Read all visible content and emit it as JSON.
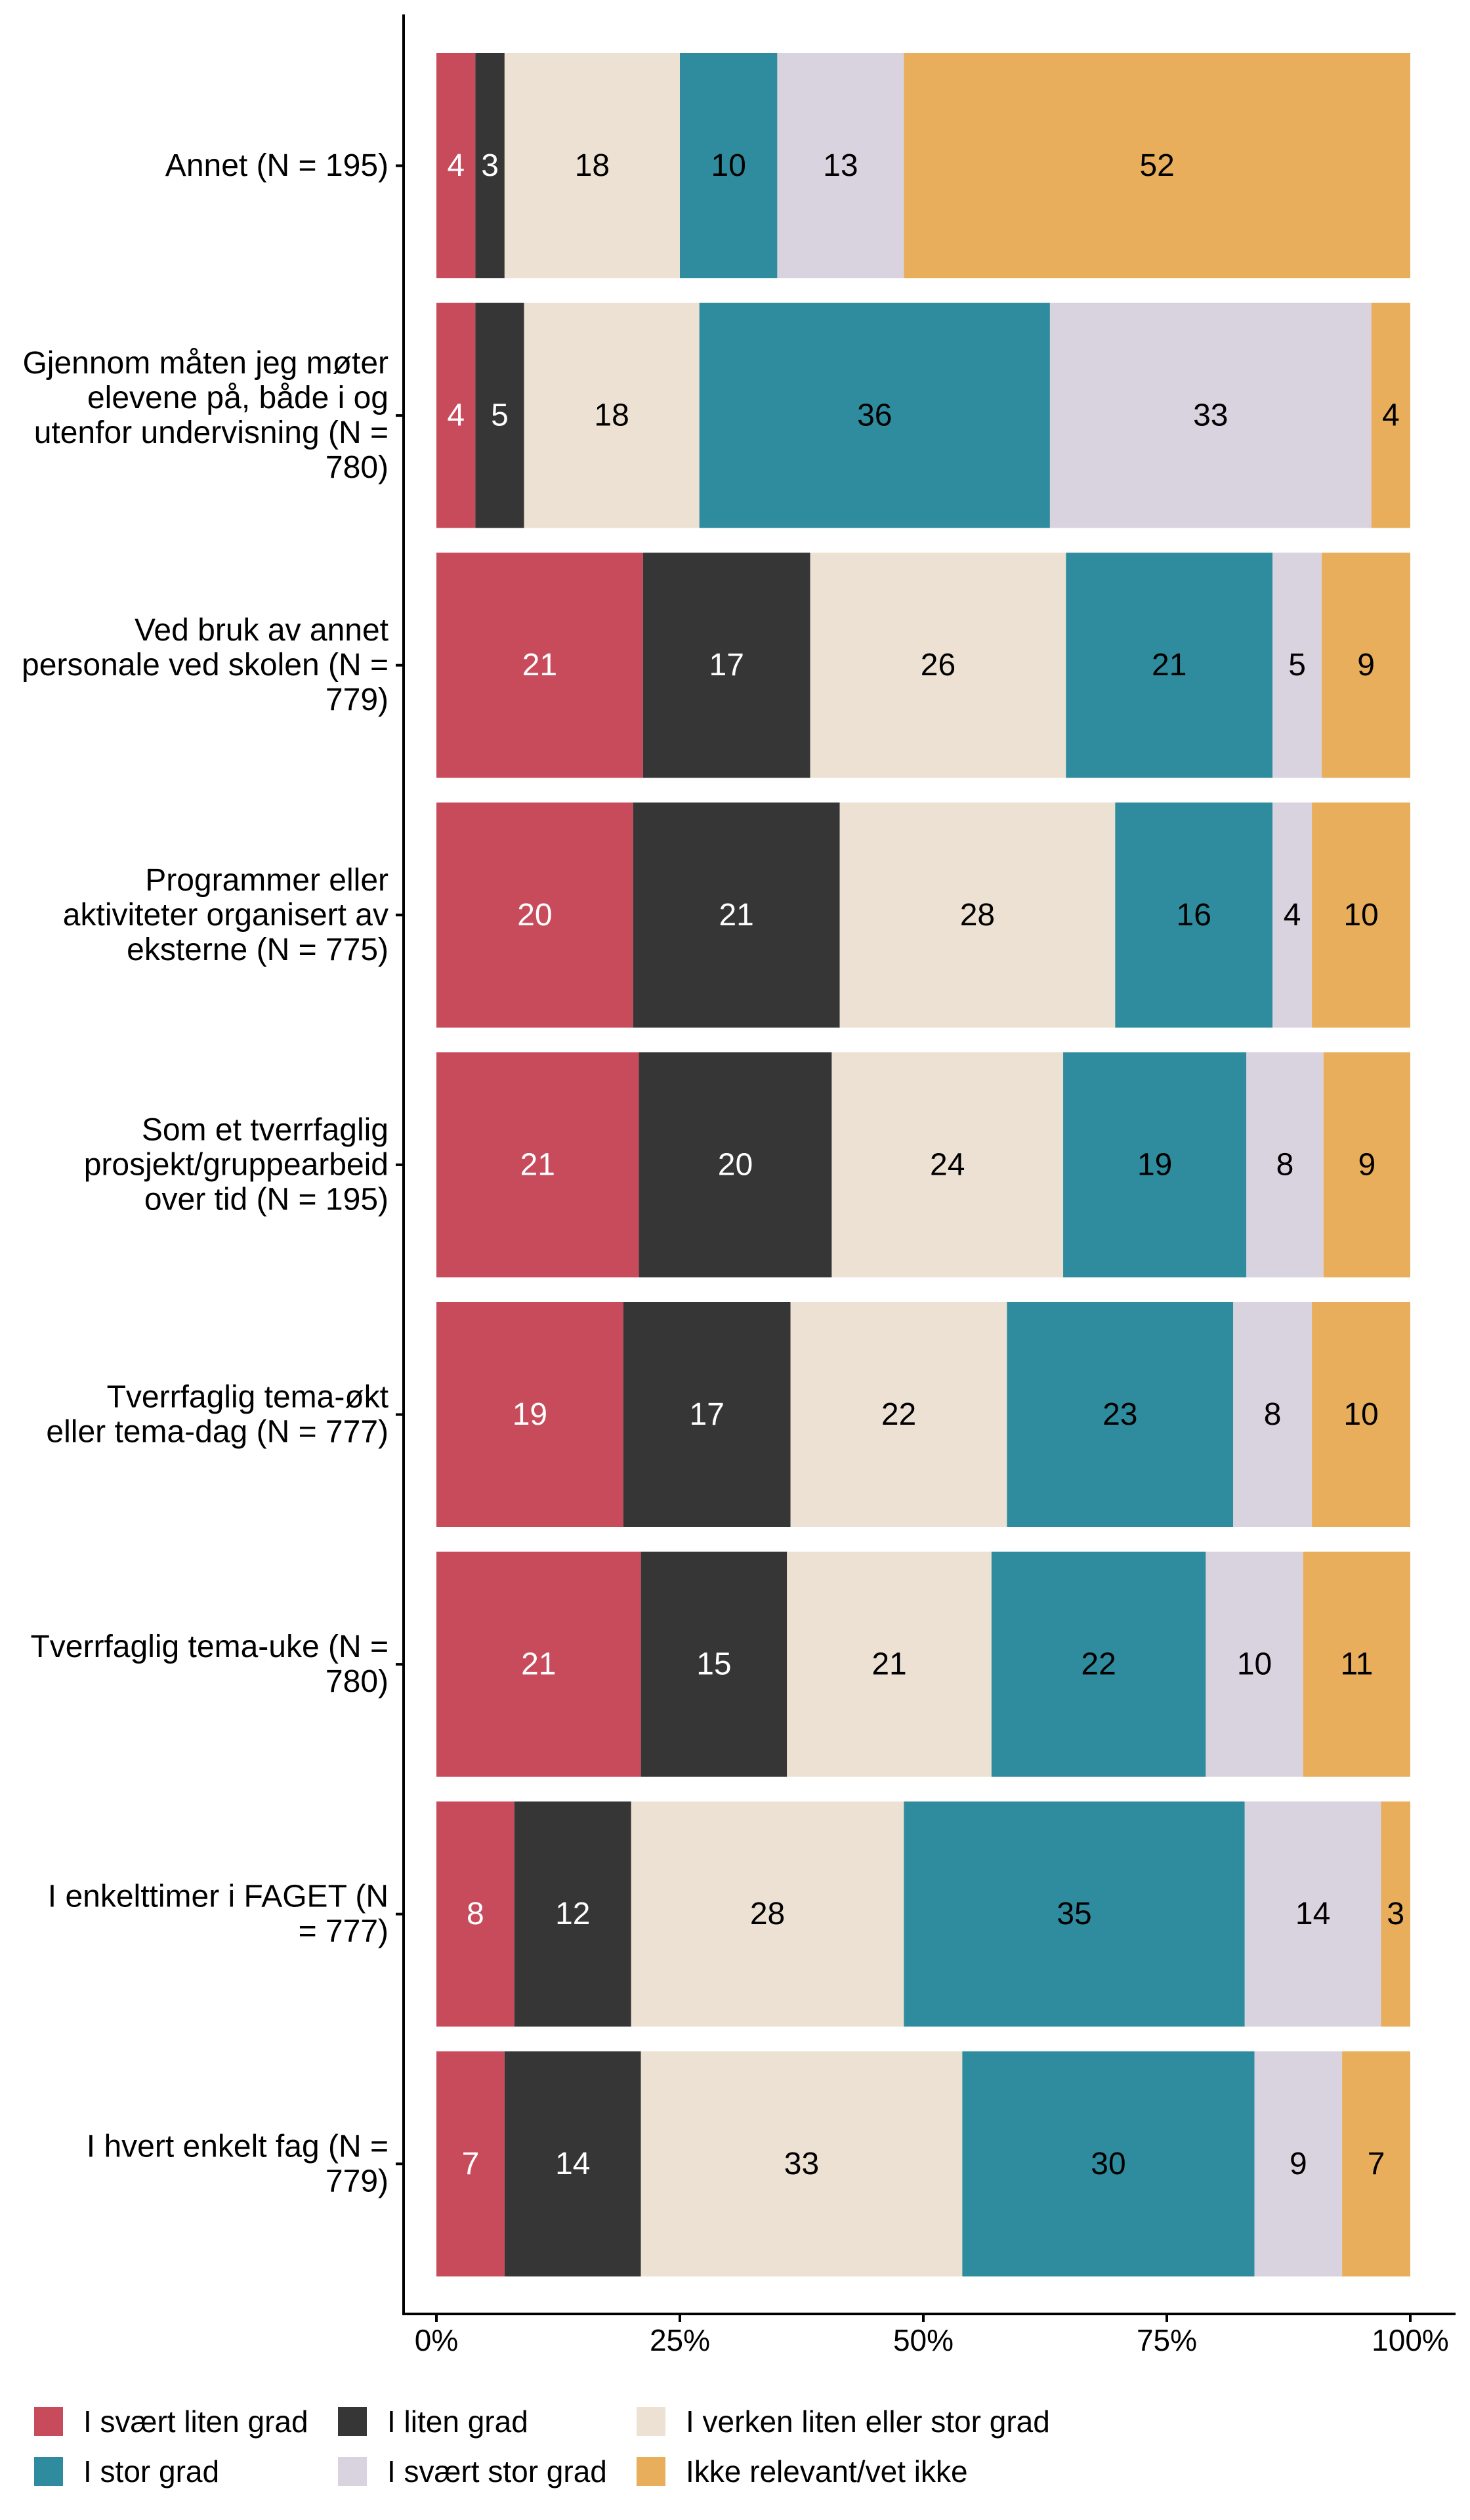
{
  "chart_data": {
    "type": "bar",
    "orientation": "horizontal",
    "stacked": true,
    "percent": true,
    "title": "",
    "xlabel": "",
    "ylabel": "",
    "xlim": [
      0,
      100
    ],
    "x_ticks": [
      "0%",
      "25%",
      "50%",
      "75%",
      "100%"
    ],
    "x_tick_values": [
      0,
      25,
      50,
      75,
      100
    ],
    "grid": false,
    "legend_position": "bottom",
    "categories": [
      "Annet (N = 195)",
      "Gjennom måten jeg møter elevene på, både i og utenfor undervisning (N = 780)",
      "Ved bruk av annet personale ved skolen (N = 779)",
      "Programmer eller aktiviteter organisert av eksterne (N = 775)",
      "Som et tverrfaglig prosjekt/gruppearbeid over tid (N = 195)",
      "Tverrfaglig tema-økt eller tema-dag (N = 777)",
      "Tverrfaglig tema-uke (N = 780)",
      "I enkelttimer i FAGET (N = 777)",
      "I hvert enkelt fag (N = 779)"
    ],
    "category_lines": [
      [
        "Annet (N = 195)"
      ],
      [
        "Gjennom måten jeg møter",
        "elevene på, både i og",
        "utenfor undervisning (N =",
        "780)"
      ],
      [
        "Ved bruk av annet",
        "personale ved skolen (N =",
        "779)"
      ],
      [
        "Programmer eller",
        "aktiviteter organisert av",
        "eksterne (N = 775)"
      ],
      [
        "Som et tverrfaglig",
        "prosjekt/gruppearbeid",
        "over tid (N = 195)"
      ],
      [
        "Tverrfaglig tema-økt",
        "eller tema-dag (N = 777)"
      ],
      [
        "Tverrfaglig tema-uke (N =",
        "780)"
      ],
      [
        "I enkelttimer i FAGET (N",
        "= 777)"
      ],
      [
        "I hvert enkelt fag (N =",
        "779)"
      ]
    ],
    "series": [
      {
        "name": "I svært liten grad",
        "color": "#C84B5C",
        "label_color": "#FFFFFF",
        "values": [
          4,
          4,
          21,
          20,
          21,
          19,
          21,
          8,
          7
        ]
      },
      {
        "name": "I liten grad",
        "color": "#363636",
        "label_color": "#FFFFFF",
        "values": [
          3,
          5,
          17,
          21,
          20,
          17,
          15,
          12,
          14
        ]
      },
      {
        "name": "I verken liten eller stor grad",
        "color": "#ECE1D2",
        "label_color": "#000000",
        "values": [
          18,
          18,
          26,
          28,
          24,
          22,
          21,
          28,
          33
        ]
      },
      {
        "name": "I stor grad",
        "color": "#2E8C9E",
        "label_color": "#000000",
        "values": [
          10,
          36,
          21,
          16,
          19,
          23,
          22,
          35,
          30
        ]
      },
      {
        "name": "I svært stor grad",
        "color": "#D9D2DF",
        "label_color": "#000000",
        "values": [
          13,
          33,
          5,
          4,
          8,
          8,
          10,
          14,
          9
        ]
      },
      {
        "name": "Ikke relevant/vet ikke",
        "color": "#E8AE5B",
        "label_color": "#000000",
        "values": [
          52,
          4,
          9,
          10,
          9,
          10,
          11,
          3,
          7
        ]
      }
    ]
  },
  "legend": {
    "items": [
      {
        "label": "I svært liten grad",
        "color": "#C84B5C"
      },
      {
        "label": "I liten grad",
        "color": "#363636"
      },
      {
        "label": "I verken liten eller stor grad",
        "color": "#ECE1D2"
      },
      {
        "label": "I stor grad",
        "color": "#2E8C9E"
      },
      {
        "label": "I svært stor grad",
        "color": "#D9D2DF"
      },
      {
        "label": "Ikke relevant/vet ikke",
        "color": "#E8AE5B"
      }
    ]
  }
}
